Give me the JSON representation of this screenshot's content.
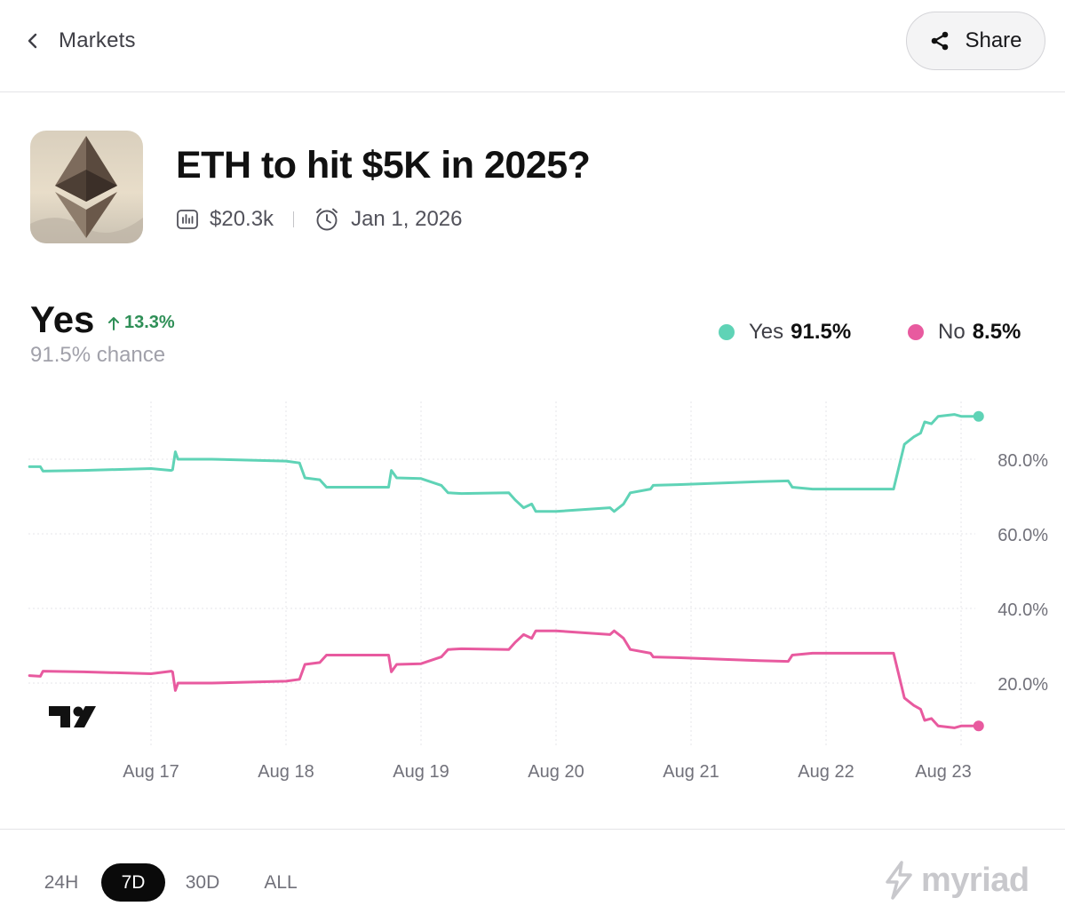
{
  "header": {
    "back_label": "Markets",
    "share_label": "Share"
  },
  "market": {
    "title": "ETH to hit $5K in 2025?",
    "volume": "$20.3k",
    "end_date": "Jan 1, 2026"
  },
  "outcome": {
    "label": "Yes",
    "change": "13.3%",
    "chance": "91.5% chance"
  },
  "legend": [
    {
      "name": "Yes",
      "value": "91.5%",
      "color": "#5fd3b6"
    },
    {
      "name": "No",
      "value": "8.5%",
      "color": "#e85a9f"
    }
  ],
  "ranges": [
    {
      "label": "24H",
      "active": false
    },
    {
      "label": "7D",
      "active": true
    },
    {
      "label": "30D",
      "active": false
    },
    {
      "label": "ALL",
      "active": false
    }
  ],
  "brand": "myriad",
  "chart_data": {
    "type": "line",
    "x_ticks": [
      "Aug 17",
      "Aug 18",
      "Aug 19",
      "Aug 20",
      "Aug 21",
      "Aug 22",
      "Aug 23"
    ],
    "y_ticks": [
      "20.0%",
      "40.0%",
      "60.0%",
      "80.0%"
    ],
    "ylim": [
      0,
      100
    ],
    "xlim": [
      16.1,
      23.25
    ],
    "grid": true,
    "legend_position": "top-right",
    "series": [
      {
        "name": "Yes",
        "color": "#5fd3b6",
        "points": [
          [
            16.1,
            78
          ],
          [
            16.18,
            78
          ],
          [
            16.2,
            76.8
          ],
          [
            16.5,
            77
          ],
          [
            17.0,
            77.5
          ],
          [
            17.15,
            77
          ],
          [
            17.16,
            77.2
          ],
          [
            17.18,
            82
          ],
          [
            17.2,
            80
          ],
          [
            17.45,
            80
          ],
          [
            17.65,
            79.8
          ],
          [
            18.0,
            79.5
          ],
          [
            18.1,
            79
          ],
          [
            18.14,
            75
          ],
          [
            18.25,
            74.5
          ],
          [
            18.3,
            72.5
          ],
          [
            18.65,
            72.5
          ],
          [
            18.76,
            72.5
          ],
          [
            18.78,
            77
          ],
          [
            18.82,
            75
          ],
          [
            19.0,
            74.8
          ],
          [
            19.15,
            73
          ],
          [
            19.2,
            71
          ],
          [
            19.3,
            70.8
          ],
          [
            19.65,
            71
          ],
          [
            19.7,
            69
          ],
          [
            19.76,
            67
          ],
          [
            19.82,
            68
          ],
          [
            19.85,
            66
          ],
          [
            20.0,
            66
          ],
          [
            20.4,
            67
          ],
          [
            20.43,
            66
          ],
          [
            20.5,
            68
          ],
          [
            20.55,
            71
          ],
          [
            20.7,
            72
          ],
          [
            20.72,
            73
          ],
          [
            20.9,
            73.2
          ],
          [
            21.5,
            74
          ],
          [
            21.72,
            74.2
          ],
          [
            21.75,
            72.5
          ],
          [
            21.9,
            72
          ],
          [
            22.5,
            72
          ],
          [
            22.58,
            84
          ],
          [
            22.65,
            86
          ],
          [
            22.7,
            87
          ],
          [
            22.73,
            90
          ],
          [
            22.78,
            89.5
          ],
          [
            22.83,
            91.5
          ],
          [
            22.95,
            92
          ],
          [
            23.0,
            91.5
          ],
          [
            23.13,
            91.5
          ]
        ]
      },
      {
        "name": "No",
        "color": "#e85a9f",
        "points": [
          [
            16.1,
            22
          ],
          [
            16.18,
            21.8
          ],
          [
            16.2,
            23.2
          ],
          [
            16.5,
            23
          ],
          [
            17.0,
            22.5
          ],
          [
            17.15,
            23.2
          ],
          [
            17.16,
            23
          ],
          [
            17.18,
            18
          ],
          [
            17.2,
            20
          ],
          [
            17.45,
            20
          ],
          [
            17.65,
            20.2
          ],
          [
            18.0,
            20.5
          ],
          [
            18.1,
            21
          ],
          [
            18.14,
            25
          ],
          [
            18.25,
            25.5
          ],
          [
            18.3,
            27.5
          ],
          [
            18.65,
            27.5
          ],
          [
            18.76,
            27.5
          ],
          [
            18.78,
            23
          ],
          [
            18.82,
            25
          ],
          [
            19.0,
            25.2
          ],
          [
            19.15,
            27
          ],
          [
            19.2,
            29
          ],
          [
            19.3,
            29.2
          ],
          [
            19.65,
            29
          ],
          [
            19.7,
            31
          ],
          [
            19.76,
            33
          ],
          [
            19.82,
            32
          ],
          [
            19.85,
            34
          ],
          [
            20.0,
            34
          ],
          [
            20.4,
            33
          ],
          [
            20.43,
            34
          ],
          [
            20.5,
            32
          ],
          [
            20.55,
            29
          ],
          [
            20.7,
            28
          ],
          [
            20.72,
            27
          ],
          [
            20.9,
            26.8
          ],
          [
            21.5,
            26
          ],
          [
            21.72,
            25.8
          ],
          [
            21.75,
            27.5
          ],
          [
            21.9,
            28
          ],
          [
            22.5,
            28
          ],
          [
            22.58,
            16
          ],
          [
            22.65,
            14
          ],
          [
            22.7,
            13
          ],
          [
            22.73,
            10
          ],
          [
            22.78,
            10.5
          ],
          [
            22.83,
            8.5
          ],
          [
            22.95,
            8
          ],
          [
            23.0,
            8.5
          ],
          [
            23.13,
            8.5
          ]
        ]
      }
    ]
  }
}
